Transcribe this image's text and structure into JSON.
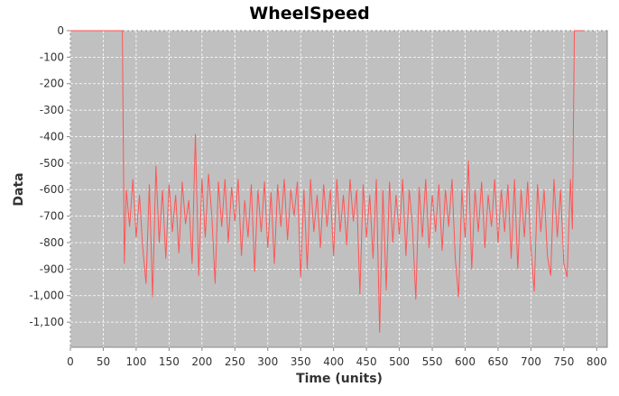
{
  "chart_data": {
    "type": "line",
    "title": "WheelSpeed",
    "x_label": "Time (units)",
    "y_label": "Data",
    "x": [
      0,
      79,
      82,
      85,
      90,
      95,
      100,
      105,
      110,
      115,
      120,
      125,
      130,
      135,
      140,
      145,
      150,
      155,
      160,
      165,
      170,
      175,
      180,
      185,
      190,
      195,
      200,
      205,
      210,
      215,
      220,
      225,
      230,
      235,
      240,
      245,
      250,
      255,
      260,
      265,
      270,
      275,
      280,
      285,
      290,
      295,
      300,
      305,
      310,
      315,
      320,
      325,
      330,
      335,
      340,
      345,
      350,
      355,
      360,
      365,
      370,
      375,
      380,
      385,
      390,
      395,
      400,
      405,
      410,
      415,
      420,
      425,
      430,
      435,
      440,
      445,
      450,
      455,
      460,
      465,
      470,
      475,
      480,
      485,
      490,
      495,
      500,
      505,
      510,
      515,
      520,
      525,
      530,
      535,
      540,
      545,
      550,
      555,
      560,
      565,
      570,
      575,
      580,
      585,
      590,
      595,
      600,
      605,
      610,
      615,
      620,
      625,
      630,
      635,
      640,
      645,
      650,
      655,
      660,
      665,
      670,
      675,
      680,
      685,
      690,
      695,
      700,
      705,
      710,
      715,
      720,
      725,
      730,
      735,
      740,
      745,
      750,
      755,
      760,
      763,
      766,
      780
    ],
    "series": [
      {
        "name": "Data",
        "color": "#ff5555",
        "values": [
          0,
          0,
          -880,
          -600,
          -740,
          -560,
          -780,
          -620,
          -820,
          -955,
          -580,
          -1005,
          -510,
          -800,
          -600,
          -860,
          -580,
          -760,
          -620,
          -840,
          -570,
          -730,
          -640,
          -880,
          -390,
          -925,
          -560,
          -780,
          -540,
          -700,
          -955,
          -570,
          -740,
          -560,
          -800,
          -590,
          -720,
          -560,
          -850,
          -640,
          -780,
          -580,
          -910,
          -600,
          -760,
          -570,
          -820,
          -610,
          -880,
          -580,
          -740,
          -560,
          -790,
          -600,
          -700,
          -570,
          -930,
          -600,
          -900,
          -560,
          -760,
          -620,
          -820,
          -580,
          -740,
          -600,
          -850,
          -560,
          -760,
          -620,
          -810,
          -560,
          -720,
          -600,
          -995,
          -580,
          -780,
          -620,
          -860,
          -560,
          -1140,
          -600,
          -980,
          -570,
          -800,
          -620,
          -770,
          -560,
          -850,
          -600,
          -740,
          -1015,
          -590,
          -780,
          -560,
          -820,
          -620,
          -760,
          -580,
          -830,
          -600,
          -740,
          -560,
          -860,
          -1005,
          -600,
          -780,
          -490,
          -900,
          -600,
          -760,
          -570,
          -820,
          -620,
          -740,
          -560,
          -800,
          -600,
          -760,
          -580,
          -860,
          -560,
          -900,
          -600,
          -780,
          -570,
          -820,
          -985,
          -580,
          -760,
          -600,
          -850,
          -925,
          -560,
          -780,
          -600,
          -880,
          -930,
          -560,
          -750,
          0,
          0
        ]
      }
    ],
    "xlim": [
      0,
      816
    ],
    "ylim": [
      -1195,
      0
    ],
    "xticks": [
      0,
      50,
      100,
      150,
      200,
      250,
      300,
      350,
      400,
      450,
      500,
      550,
      600,
      650,
      700,
      750,
      800
    ],
    "yticks": [
      0,
      -100,
      -200,
      -300,
      -400,
      -500,
      -600,
      -700,
      -800,
      -900,
      {
        "value": -1000,
        "label": "-1,000"
      },
      {
        "value": -1100,
        "label": "-1,100"
      }
    ],
    "grid": true
  }
}
